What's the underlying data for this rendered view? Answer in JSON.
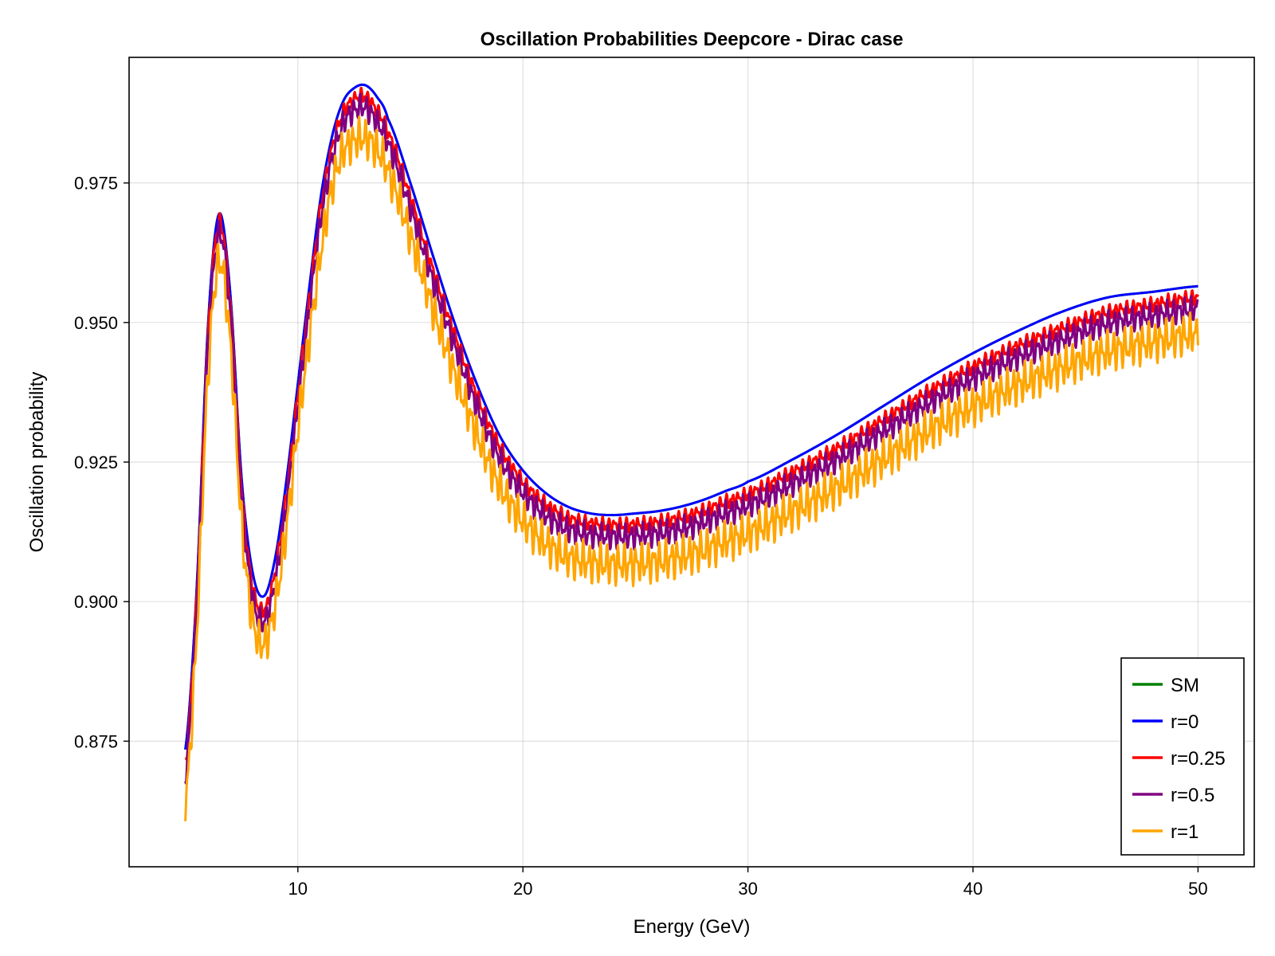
{
  "chart_data": {
    "type": "line",
    "title": "Oscillation Probabilities Deepcore - Dirac case",
    "xlabel": "Energy (GeV)",
    "ylabel": "Oscillation probability",
    "xlim": [
      2.5,
      52.5
    ],
    "ylim": [
      0.8525,
      0.9975
    ],
    "xticks": [
      10,
      20,
      30,
      40,
      50
    ],
    "xtick_labels": [
      "10",
      "20",
      "30",
      "40",
      "50"
    ],
    "yticks": [
      0.875,
      0.9,
      0.925,
      0.95,
      0.975
    ],
    "ytick_labels": [
      "0.875",
      "0.900",
      "0.925",
      "0.950",
      "0.975"
    ],
    "grid": true,
    "legend_position": "bottom-right",
    "series": [
      {
        "name": "SM",
        "color": "#008000",
        "x": [
          5,
          5.5,
          6,
          6.5,
          7,
          7.5,
          8,
          8.5,
          9,
          9.5,
          10,
          10.5,
          11,
          11.5,
          12,
          12.5,
          13,
          13.5,
          14,
          15,
          16,
          17,
          18,
          19,
          20,
          21,
          22,
          23,
          24,
          25,
          26,
          27,
          28,
          29,
          30,
          32,
          34,
          36,
          38,
          40,
          42,
          44,
          46,
          48,
          50
        ],
        "y": [
          0.8735,
          0.902,
          0.949,
          0.9695,
          0.955,
          0.922,
          0.905,
          0.901,
          0.908,
          0.922,
          0.939,
          0.956,
          0.972,
          0.983,
          0.9895,
          0.992,
          0.9925,
          0.9905,
          0.9865,
          0.975,
          0.962,
          0.9495,
          0.9385,
          0.9295,
          0.9235,
          0.9195,
          0.917,
          0.9158,
          0.9155,
          0.9158,
          0.9162,
          0.917,
          0.9182,
          0.9198,
          0.9215,
          0.9255,
          0.93,
          0.935,
          0.94,
          0.9445,
          0.9485,
          0.952,
          0.9545,
          0.9555,
          0.9565
        ]
      },
      {
        "name": "r=0",
        "color": "#0000ff",
        "x": [
          5,
          5.5,
          6,
          6.5,
          7,
          7.5,
          8,
          8.5,
          9,
          9.5,
          10,
          10.5,
          11,
          11.5,
          12,
          12.5,
          13,
          13.5,
          14,
          15,
          16,
          17,
          18,
          19,
          20,
          21,
          22,
          23,
          24,
          25,
          26,
          27,
          28,
          29,
          30,
          32,
          34,
          36,
          38,
          40,
          42,
          44,
          46,
          48,
          50
        ],
        "y": [
          0.8735,
          0.902,
          0.949,
          0.9695,
          0.955,
          0.922,
          0.905,
          0.901,
          0.908,
          0.922,
          0.939,
          0.956,
          0.972,
          0.983,
          0.9895,
          0.992,
          0.9925,
          0.9905,
          0.9865,
          0.975,
          0.962,
          0.9495,
          0.9385,
          0.9295,
          0.9235,
          0.9195,
          0.917,
          0.9158,
          0.9155,
          0.9158,
          0.9162,
          0.917,
          0.9182,
          0.9198,
          0.9215,
          0.9255,
          0.93,
          0.935,
          0.94,
          0.9445,
          0.9485,
          0.952,
          0.9545,
          0.9555,
          0.9565
        ]
      },
      {
        "name": "r=0.25",
        "color": "#ff0000",
        "oscillation_amplitude": 0.0015,
        "x": [
          5,
          5.5,
          6,
          6.5,
          7,
          7.5,
          8,
          8.5,
          9,
          9.5,
          10,
          10.5,
          11,
          11.5,
          12,
          12.5,
          13,
          13.5,
          14,
          15,
          16,
          17,
          18,
          19,
          20,
          21,
          22,
          23,
          24,
          25,
          26,
          27,
          28,
          29,
          30,
          32,
          34,
          36,
          38,
          40,
          42,
          44,
          46,
          48,
          50
        ],
        "y": [
          0.871,
          0.9,
          0.947,
          0.968,
          0.953,
          0.92,
          0.9025,
          0.8985,
          0.9055,
          0.9195,
          0.937,
          0.954,
          0.97,
          0.981,
          0.9875,
          0.99,
          0.9905,
          0.988,
          0.984,
          0.9725,
          0.9595,
          0.9475,
          0.9365,
          0.9275,
          0.9215,
          0.9175,
          0.915,
          0.914,
          0.9137,
          0.9138,
          0.9142,
          0.915,
          0.9162,
          0.9178,
          0.9193,
          0.9232,
          0.9275,
          0.9325,
          0.9375,
          0.942,
          0.9458,
          0.949,
          0.9518,
          0.9532,
          0.9545
        ]
      },
      {
        "name": "r=0.5",
        "color": "#800080",
        "oscillation_amplitude": 0.0025,
        "x": [
          5,
          5.5,
          6,
          6.5,
          7,
          7.5,
          8,
          8.5,
          9,
          9.5,
          10,
          10.5,
          11,
          11.5,
          12,
          12.5,
          13,
          13.5,
          14,
          15,
          16,
          17,
          18,
          19,
          20,
          21,
          22,
          23,
          24,
          25,
          26,
          27,
          28,
          29,
          30,
          32,
          34,
          36,
          38,
          40,
          42,
          44,
          46,
          48,
          50
        ],
        "y": [
          0.869,
          0.898,
          0.945,
          0.966,
          0.951,
          0.918,
          0.9005,
          0.8965,
          0.9035,
          0.9175,
          0.935,
          0.952,
          0.968,
          0.979,
          0.9855,
          0.988,
          0.9885,
          0.986,
          0.982,
          0.9705,
          0.9575,
          0.9455,
          0.9345,
          0.9255,
          0.9195,
          0.9155,
          0.913,
          0.912,
          0.9117,
          0.9118,
          0.9122,
          0.913,
          0.9142,
          0.9158,
          0.9173,
          0.9212,
          0.9255,
          0.9305,
          0.9355,
          0.94,
          0.9438,
          0.947,
          0.9498,
          0.9512,
          0.9525
        ]
      },
      {
        "name": "r=1",
        "color": "#ffa500",
        "oscillation_amplitude": 0.004,
        "x": [
          5,
          5.5,
          6,
          6.5,
          7,
          7.5,
          8,
          8.5,
          9,
          9.5,
          10,
          10.5,
          11,
          11.5,
          12,
          12.5,
          13,
          13.5,
          14,
          15,
          16,
          17,
          18,
          19,
          20,
          21,
          22,
          23,
          24,
          25,
          26,
          27,
          28,
          29,
          30,
          32,
          34,
          36,
          38,
          40,
          42,
          44,
          46,
          48,
          50
        ],
        "y": [
          0.864,
          0.894,
          0.94,
          0.961,
          0.946,
          0.914,
          0.8965,
          0.8925,
          0.8995,
          0.9135,
          0.931,
          0.947,
          0.962,
          0.974,
          0.9805,
          0.9825,
          0.983,
          0.981,
          0.977,
          0.9655,
          0.9525,
          0.9405,
          0.9295,
          0.9205,
          0.9145,
          0.9105,
          0.908,
          0.907,
          0.9067,
          0.9068,
          0.9072,
          0.908,
          0.9092,
          0.9108,
          0.9123,
          0.9162,
          0.9205,
          0.9255,
          0.9305,
          0.935,
          0.9388,
          0.942,
          0.9448,
          0.9465,
          0.948
        ]
      }
    ]
  }
}
